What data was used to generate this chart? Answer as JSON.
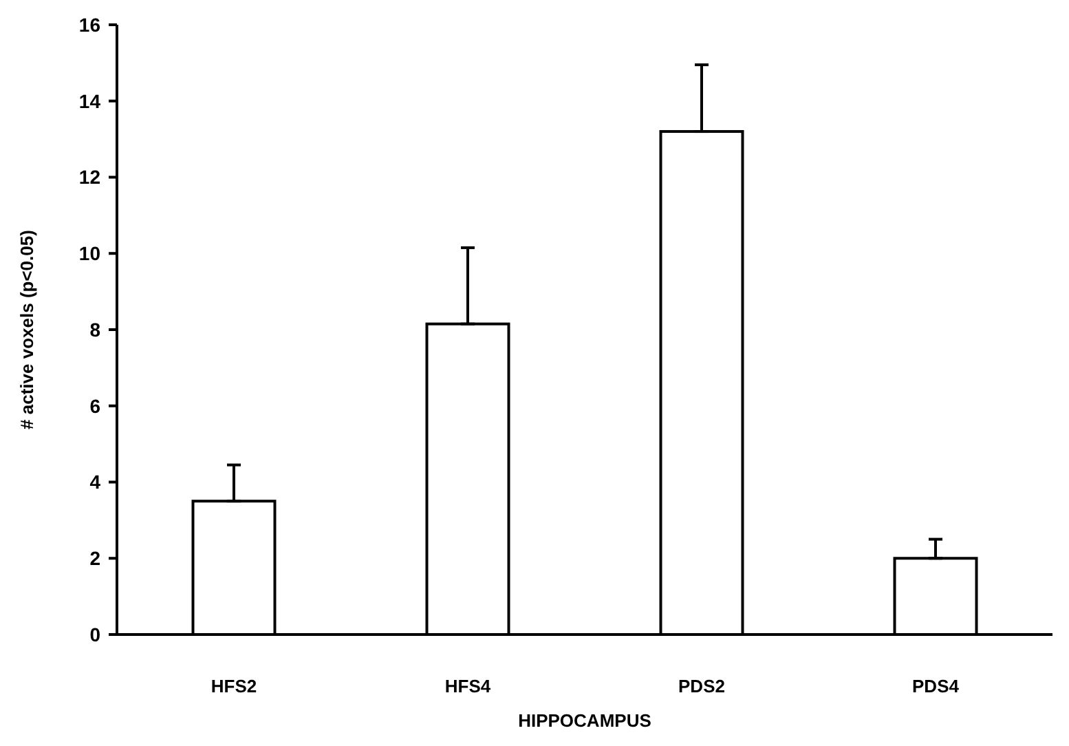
{
  "chart_data": {
    "type": "bar",
    "xlabel": "HIPPOCAMPUS",
    "ylabel": "# active voxels (p<0.05)",
    "categories": [
      "HFS2",
      "HFS4",
      "PDS2",
      "PDS4"
    ],
    "values": [
      3.5,
      8.15,
      13.2,
      2.0
    ],
    "errors": [
      [
        3.5,
        4.45
      ],
      [
        8.15,
        10.15
      ],
      [
        13.2,
        14.95
      ],
      [
        2.0,
        2.5
      ]
    ],
    "color": "#ffffff",
    "ylim": [
      0,
      16
    ],
    "yticks": [
      0,
      2,
      4,
      6,
      8,
      10,
      12,
      14,
      16
    ],
    "grid": false
  }
}
